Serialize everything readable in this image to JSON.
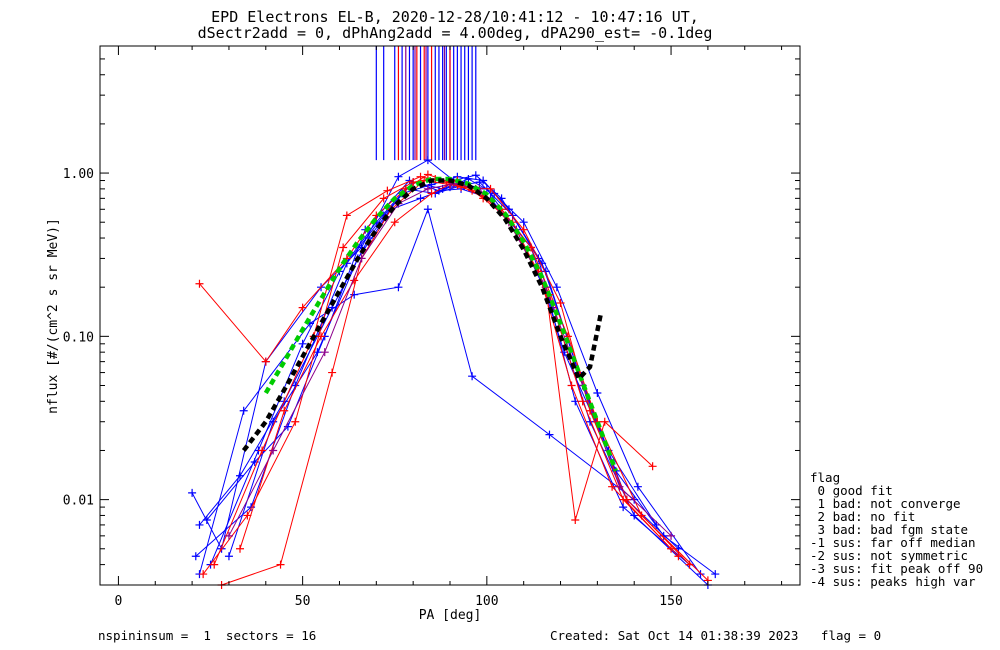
{
  "chart_data": {
    "type": "line",
    "title": "EPD Electrons EL-B, 2020-12-28/10:41:12 - 10:47:16 UT,",
    "subtitle": "dSectr2add = 0, dPhAng2add = 4.00deg, dPA290_est=  -0.1deg",
    "xlabel": "PA [deg]",
    "ylabel": "nflux [#/(cm^2 s sr MeV)]",
    "xlim": [
      -5,
      185
    ],
    "ylim": [
      0.003,
      6.0
    ],
    "yscale": "log",
    "x_ticks": [
      0,
      50,
      100,
      150
    ],
    "x_tick_labels": [
      "0",
      "50",
      "100",
      "150"
    ],
    "y_ticks": [
      0.01,
      0.1,
      1.0
    ],
    "y_tick_labels": [
      "0.01",
      "0.10",
      "1.00"
    ],
    "grid": false,
    "colors": {
      "blue": "#0000ff",
      "red": "#ff0000",
      "green": "#00cc00",
      "black": "#000000",
      "purple": "#8b008b"
    },
    "series": [
      {
        "color": "blue",
        "style": "solid",
        "marker": "+",
        "x": [
          20,
          28,
          40,
          55,
          66,
          76,
          84,
          91,
          97,
          104,
          114,
          124,
          137,
          155
        ],
        "y": [
          0.011,
          0.005,
          0.07,
          0.2,
          0.35,
          0.95,
          1.2,
          0.9,
          0.97,
          0.7,
          0.3,
          0.04,
          0.009,
          0.004
        ]
      },
      {
        "color": "blue",
        "style": "solid",
        "marker": "+",
        "x": [
          22,
          33,
          45,
          58,
          68,
          77,
          85,
          92,
          99,
          106,
          116,
          126,
          138,
          152
        ],
        "y": [
          0.007,
          0.014,
          0.04,
          0.15,
          0.4,
          0.75,
          0.85,
          0.95,
          0.9,
          0.6,
          0.25,
          0.05,
          0.01,
          0.005
        ]
      },
      {
        "color": "blue",
        "style": "solid",
        "marker": "+",
        "x": [
          25,
          38,
          50,
          60,
          70,
          78,
          86,
          94,
          100,
          108,
          118,
          128,
          140,
          160
        ],
        "y": [
          0.004,
          0.02,
          0.09,
          0.25,
          0.5,
          0.8,
          0.75,
          0.85,
          0.8,
          0.45,
          0.15,
          0.03,
          0.008,
          0.003
        ]
      },
      {
        "color": "blue",
        "style": "solid",
        "marker": "+",
        "x": [
          21,
          36,
          48,
          62,
          72,
          80,
          88,
          95,
          102,
          110,
          119,
          130,
          141,
          158
        ],
        "y": [
          0.0045,
          0.009,
          0.05,
          0.28,
          0.55,
          0.88,
          0.8,
          0.92,
          0.75,
          0.5,
          0.2,
          0.045,
          0.012,
          0.0035
        ]
      },
      {
        "color": "blue",
        "style": "solid",
        "marker": "+",
        "x": [
          22,
          34,
          52,
          64,
          76,
          84,
          96,
          117,
          140
        ],
        "y": [
          0.0035,
          0.035,
          0.12,
          0.18,
          0.2,
          0.6,
          0.057,
          0.025,
          0.01
        ]
      },
      {
        "color": "blue",
        "style": "solid",
        "marker": "+",
        "x": [
          30,
          42,
          54,
          65,
          74,
          82,
          90,
          98,
          107,
          115,
          125,
          135,
          148,
          162
        ],
        "y": [
          0.0045,
          0.03,
          0.08,
          0.3,
          0.6,
          0.7,
          0.82,
          0.88,
          0.55,
          0.28,
          0.06,
          0.015,
          0.006,
          0.0035
        ]
      },
      {
        "color": "blue",
        "style": "solid",
        "marker": "+",
        "x": [
          24,
          37,
          46,
          56,
          67,
          79,
          87,
          93,
          101,
          112,
          121,
          133,
          146
        ],
        "y": [
          0.0075,
          0.017,
          0.028,
          0.1,
          0.45,
          0.9,
          0.78,
          0.8,
          0.7,
          0.35,
          0.08,
          0.02,
          0.007
        ]
      },
      {
        "color": "red",
        "style": "solid",
        "marker": "+",
        "x": [
          22,
          40,
          50,
          62,
          70,
          78,
          84,
          92,
          100,
          106,
          116,
          124,
          132,
          145
        ],
        "y": [
          0.21,
          0.07,
          0.15,
          0.3,
          0.55,
          0.8,
          0.98,
          0.85,
          0.7,
          0.5,
          0.2,
          0.0075,
          0.03,
          0.016
        ]
      },
      {
        "color": "red",
        "style": "solid",
        "marker": "+",
        "x": [
          23,
          35,
          48,
          61,
          72,
          80,
          86,
          93,
          101,
          110,
          120,
          128,
          138,
          155
        ],
        "y": [
          0.0035,
          0.008,
          0.03,
          0.35,
          0.7,
          0.88,
          0.92,
          0.82,
          0.8,
          0.45,
          0.16,
          0.035,
          0.01,
          0.004
        ]
      },
      {
        "color": "red",
        "style": "solid",
        "marker": "+",
        "x": [
          26,
          39,
          53,
          62,
          73,
          82,
          89,
          96,
          104,
          112,
          122,
          130,
          142,
          160
        ],
        "y": [
          0.004,
          0.02,
          0.1,
          0.55,
          0.78,
          0.95,
          0.88,
          0.78,
          0.6,
          0.35,
          0.1,
          0.03,
          0.008,
          0.0032
        ]
      },
      {
        "color": "red",
        "style": "solid",
        "marker": "+",
        "x": [
          28,
          44,
          58,
          66,
          74,
          83,
          90,
          97,
          105,
          114,
          123,
          134,
          150
        ],
        "y": [
          0.003,
          0.004,
          0.06,
          0.3,
          0.6,
          0.9,
          0.85,
          0.8,
          0.55,
          0.25,
          0.05,
          0.012,
          0.005
        ]
      },
      {
        "color": "red",
        "style": "solid",
        "marker": "+",
        "x": [
          33,
          45,
          55,
          64,
          75,
          85,
          92,
          99,
          107,
          117,
          126,
          137,
          152
        ],
        "y": [
          0.005,
          0.035,
          0.1,
          0.22,
          0.5,
          0.75,
          0.9,
          0.7,
          0.5,
          0.18,
          0.04,
          0.01,
          0.0045
        ]
      },
      {
        "color": "purple",
        "style": "solid",
        "marker": "+",
        "x": [
          30,
          42,
          56,
          66,
          76,
          84,
          91,
          98,
          106,
          116,
          126,
          136,
          150
        ],
        "y": [
          0.006,
          0.02,
          0.08,
          0.3,
          0.65,
          0.8,
          0.86,
          0.8,
          0.5,
          0.2,
          0.05,
          0.012,
          0.006
        ]
      },
      {
        "name": "fit",
        "color": "green",
        "style": "dashed",
        "marker": "none",
        "x": [
          40,
          45,
          50,
          55,
          60,
          65,
          70,
          75,
          80,
          85,
          90,
          95,
          100,
          105,
          110,
          115,
          120,
          125,
          130,
          135
        ],
        "y": [
          0.045,
          0.07,
          0.11,
          0.17,
          0.26,
          0.38,
          0.53,
          0.7,
          0.84,
          0.92,
          0.92,
          0.86,
          0.74,
          0.56,
          0.38,
          0.23,
          0.12,
          0.06,
          0.03,
          0.015
        ]
      },
      {
        "name": "model",
        "color": "black",
        "style": "dashed",
        "marker": "none",
        "x": [
          34,
          40,
          45,
          50,
          55,
          60,
          65,
          70,
          75,
          80,
          85,
          90,
          95,
          100,
          105,
          110,
          115,
          120,
          125,
          128,
          131
        ],
        "y": [
          0.02,
          0.03,
          0.047,
          0.075,
          0.12,
          0.19,
          0.3,
          0.45,
          0.63,
          0.8,
          0.9,
          0.9,
          0.84,
          0.7,
          0.52,
          0.34,
          0.2,
          0.1,
          0.055,
          0.065,
          0.14
        ]
      }
    ],
    "vertical_lines": [
      {
        "color": "blue",
        "x": [
          70,
          72,
          75,
          77,
          79,
          80,
          82,
          84,
          86,
          87,
          88,
          89,
          90,
          91,
          92,
          93,
          94,
          95,
          96,
          97
        ]
      },
      {
        "color": "red",
        "x": [
          76,
          81,
          83,
          85,
          90
        ]
      },
      {
        "color": "purple",
        "x": [
          78,
          80.5,
          83.5,
          88.5
        ]
      }
    ],
    "vertical_line_range": [
      1.2,
      6.0
    ]
  },
  "legend": {
    "title": "flag",
    "items": [
      " 0 good fit",
      " 1 bad: not converge",
      " 2 bad: no fit",
      " 3 bad: bad fgm state",
      "-1 sus: far off median",
      "-2 sus: not symmetric",
      "-3 sus: fit peak off 90",
      "-4 sus: peaks high var"
    ]
  },
  "footer": {
    "left": "nspininsum =  1  sectors = 16",
    "right": "Created: Sat Oct 14 01:38:39 2023   flag = 0"
  }
}
